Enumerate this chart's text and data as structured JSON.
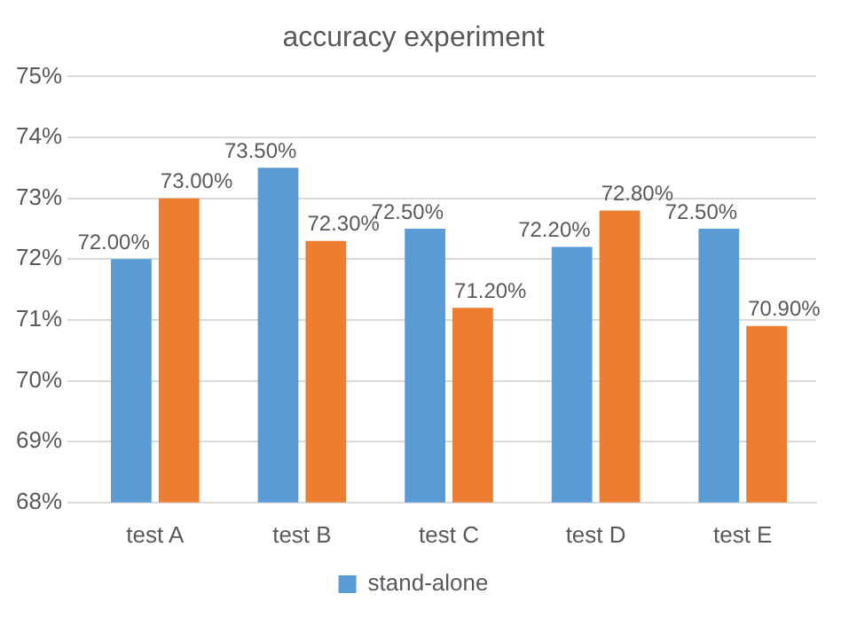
{
  "chart_data": {
    "type": "bar",
    "title": "accuracy experiment",
    "categories": [
      "test A",
      "test B",
      "test C",
      "test D",
      "test E"
    ],
    "series": [
      {
        "name": "stand-alone",
        "color": "#5b9bd5",
        "values": [
          72.0,
          73.5,
          72.5,
          72.2,
          72.5
        ],
        "value_labels": [
          "72.00%",
          "73.50%",
          "72.50%",
          "72.20%",
          "72.50%"
        ]
      },
      {
        "color": "#ed7d31",
        "values": [
          73.0,
          72.3,
          71.2,
          72.8,
          70.9
        ],
        "value_labels": [
          "73.00%",
          "72.30%",
          "71.20%",
          "72.80%",
          "70.90%"
        ]
      }
    ],
    "ylim": [
      68,
      75
    ],
    "yticks": [
      {
        "value": 68,
        "label": "68%"
      },
      {
        "value": 69,
        "label": "69%"
      },
      {
        "value": 70,
        "label": "70%"
      },
      {
        "value": 71,
        "label": "71%"
      },
      {
        "value": 72,
        "label": "72%"
      },
      {
        "value": 73,
        "label": "73%"
      },
      {
        "value": 74,
        "label": "74%"
      },
      {
        "value": 75,
        "label": "75%"
      }
    ],
    "grid": "y",
    "legend": "bottom"
  }
}
